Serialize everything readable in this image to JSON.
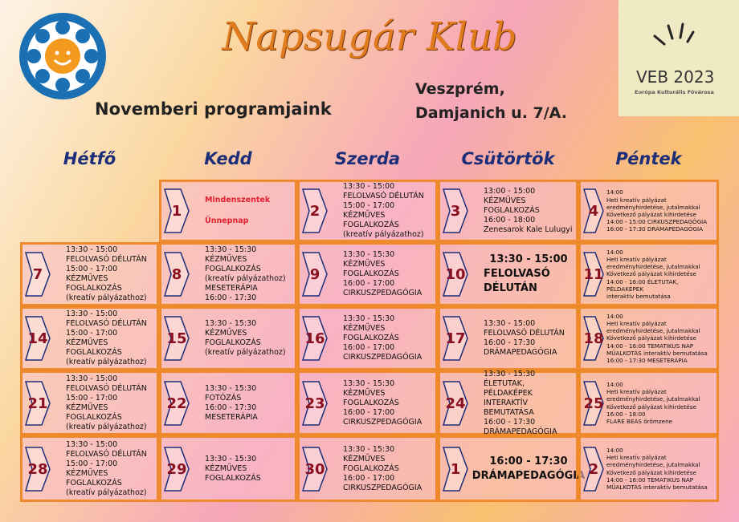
{
  "header": {
    "title": "Napsugár Klub",
    "subtitle": "Novemberi programjaink",
    "address": [
      "Veszprém,",
      "Damjanich u. 7/A."
    ],
    "logo_text": "VEB 2023",
    "logo_subtitle": "Európa Kulturális Fővárosa"
  },
  "days": [
    "Hétfő",
    "Kedd",
    "Szerda",
    "Csütörtök",
    "Péntek"
  ],
  "rows": [
    [
      null,
      {
        "date": "1",
        "lines": [
          "Mindenszentek",
          "Ünnepnap"
        ]
      },
      {
        "date": "2",
        "lines": [
          "13:30 - 15:00",
          "FELOLVASÓ DÉLUTÁN",
          "15:00 - 17:00",
          "KÉZMŰVES FOGLALKOZÁS",
          "(kreatív pályázathoz)"
        ]
      },
      {
        "date": "3",
        "lines": [
          "13:00 - 15:00",
          "KÉZMŰVES FOGLALKOZÁS",
          "16:00 - 18:00",
          "Zenesarok Kale Lulugyi"
        ]
      },
      {
        "date": "4",
        "lines": [
          "14:00",
          "Heti kreatív pályázat",
          "eredményhirdetése, jutalmakkal",
          "Következő pályázat kihirdetése",
          "14:00 - 15:00  CIRKUSZPEDAGÓGIA",
          "16:00 - 17:30  DRÁMAPEDAGÓGIA"
        ]
      }
    ],
    [
      {
        "date": "7",
        "lines": [
          "13:30 - 15:00",
          "FELOLVASÓ DÉLUTÁN",
          "15:00 - 17:00",
          "KÉZMŰVES FOGLALKOZÁS",
          "(kreatív pályázathoz)"
        ]
      },
      {
        "date": "8",
        "lines": [
          "13:30 - 15:30",
          "KÉZMŰVES FOGLALKOZÁS",
          "(kreatív pályázathoz)",
          "MESETERÁPIA",
          "16:00 - 17:30"
        ]
      },
      {
        "date": "9",
        "lines": [
          "13:30 - 15:30",
          "KÉZMŰVES FOGLALKOZÁS",
          "16:00 - 17:00",
          "CIRKUSZPEDAGÓGIA"
        ]
      },
      {
        "date": "10",
        "lines": [
          "13:30 - 15:00",
          "FELOLVASÓ DÉLUTÁN"
        ]
      },
      {
        "date": "11",
        "lines": [
          "14:00",
          "Heti kreatív pályázat",
          "eredményhirdetése, jutalmakkal",
          "Következő pályázat kihirdetése",
          "14:00 - 16:00 ÉLETUTAK, PÉLDAKÉPEK",
          "interaktív bemutatása"
        ]
      }
    ],
    [
      {
        "date": "14",
        "lines": [
          "13:30 - 15:00",
          "FELOLVASÓ DÉLUTÁN",
          "15:00 - 17:00",
          "KÉZMŰVES FOGLALKOZÁS",
          "(kreatív pályázathoz)"
        ]
      },
      {
        "date": "15",
        "lines": [
          "13:30 - 15:30",
          "KÉZMŰVES",
          "FOGLALKOZÁS",
          "(kreatív pályázathoz)"
        ]
      },
      {
        "date": "16",
        "lines": [
          "13:30 - 15:30",
          "KÉZMŰVES FOGLALKOZÁS",
          "16:00 - 17:00",
          "CIRKUSZPEDAGÓGIA"
        ]
      },
      {
        "date": "17",
        "lines": [
          "13:30 - 15:00",
          "FELOLVASÓ DÉLUTÁN",
          "16:00 - 17:30",
          "DRÁMAPEDAGÓGIA"
        ]
      },
      {
        "date": "18",
        "lines": [
          "14:00",
          "Heti kreatív pályázat",
          "eredményhirdetése, jutalmakkal",
          "Következő pályázat kihirdetése",
          "14:00 - 16:00 TEMATIKUS NAP",
          "MŰALKOTÁS interaktív bemutatása",
          "16:00 - 17:30  MESETERÁPIA"
        ]
      }
    ],
    [
      {
        "date": "21",
        "lines": [
          "13:30 - 15:00",
          "FELOLVASÓ DÉLUTÁN",
          "15:00 - 17:00",
          "KÉZMŰVES FOGLALKOZÁS",
          "(kreatív pályázathoz)"
        ]
      },
      {
        "date": "22",
        "lines": [
          "13:30 - 15:30",
          "FOTÓZÁS",
          "16:00 - 17:30",
          "MESETERÁPIA"
        ]
      },
      {
        "date": "23",
        "lines": [
          "13:30 - 15:30",
          "KÉZMŰVES FOGLALKOZÁS",
          "16:00 - 17:00",
          "CIRKUSZPEDAGÓGIA"
        ]
      },
      {
        "date": "24",
        "lines": [
          "13:30 - 15:30",
          "ÉLETUTAK, PÉLDAKÉPEK",
          "INTERAKTÍV BEMUTATÁSA",
          "16:00 - 17:30",
          "DRÁMAPEDAGÓGIA"
        ]
      },
      {
        "date": "25",
        "lines": [
          "14:00",
          "Heti kreatív pályázat",
          "eredményhirdetése, jutalmakkal",
          "Következő pályázat kihirdetése",
          "16:00 - 18:00",
          "FLARE BEÁS örömzene"
        ]
      }
    ],
    [
      {
        "date": "28",
        "lines": [
          "13:30 - 15:00",
          "FELOLVASÓ DÉLUTÁN",
          "15:00 - 17:00",
          "KÉZMŰVES FOGLALKOZÁS",
          "(kreatív pályázathoz)"
        ]
      },
      {
        "date": "29",
        "lines": [
          "13:30 - 15:30",
          "KÉZMŰVES",
          "FOGLALKOZÁS"
        ]
      },
      {
        "date": "30",
        "lines": [
          "13:30 - 15:30",
          "KÉZMŰVES FOGLALKOZÁS",
          "16:00 - 17:00",
          "CIRKUSZPEDAGÓGIA"
        ]
      },
      {
        "date": "1",
        "lines": [
          "16:00 - 17:30",
          "DRÁMAPEDAGÓGIA"
        ]
      },
      {
        "date": "2",
        "lines": [
          "14:00",
          "Heti kreatív pályázat",
          "eredményhirdetése, jutalmakkal",
          "Következő pályázat kihirdetése",
          "14:00 - 16:00 TEMATIKUS NAP",
          "MŰALKOTÁS interaktív bemutatása"
        ]
      }
    ]
  ]
}
